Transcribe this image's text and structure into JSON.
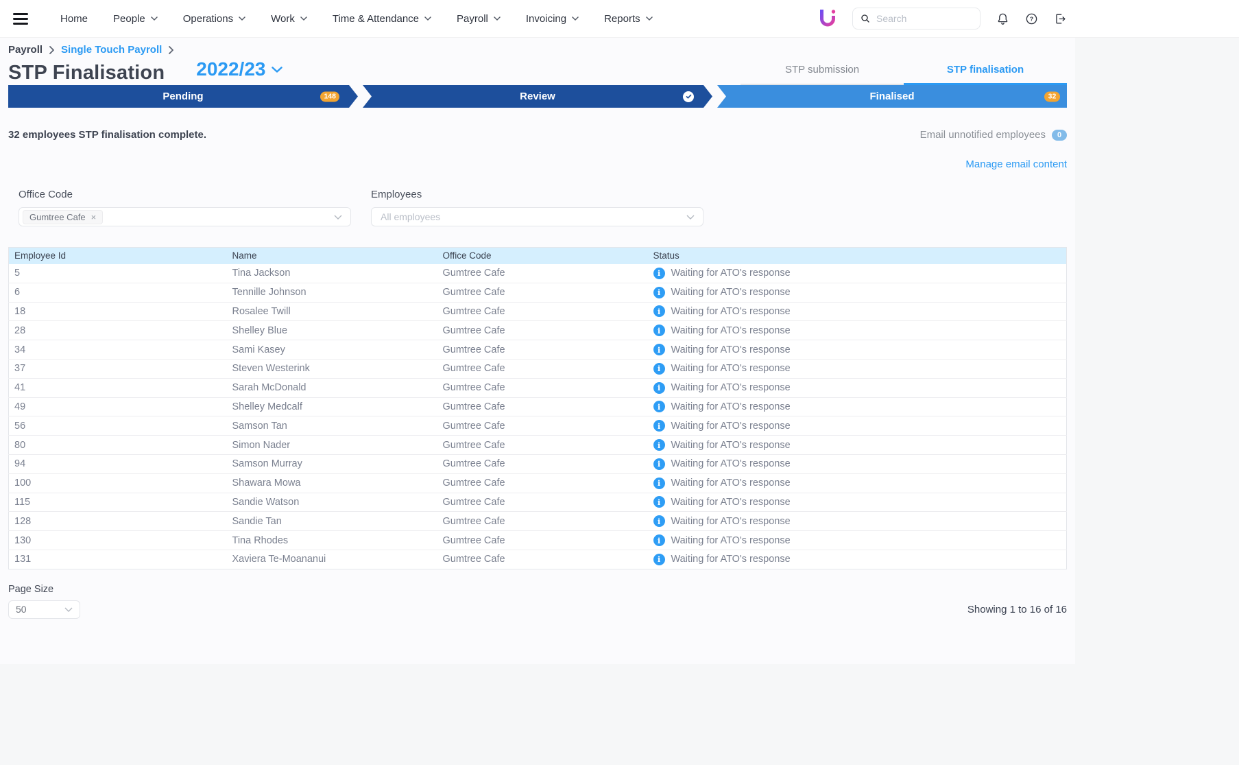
{
  "nav": {
    "items": [
      {
        "label": "Home",
        "dropdown": false
      },
      {
        "label": "People",
        "dropdown": true
      },
      {
        "label": "Operations",
        "dropdown": true
      },
      {
        "label": "Work",
        "dropdown": true
      },
      {
        "label": "Time & Attendance",
        "dropdown": true
      },
      {
        "label": "Payroll",
        "dropdown": true
      },
      {
        "label": "Invoicing",
        "dropdown": true
      },
      {
        "label": "Reports",
        "dropdown": true
      }
    ],
    "search_placeholder": "Search"
  },
  "breadcrumb": {
    "level1": "Payroll",
    "level2": "Single Touch Payroll"
  },
  "page": {
    "title": "STP Finalisation",
    "year": "2022/23"
  },
  "tabs": [
    {
      "label": "STP submission",
      "active": false
    },
    {
      "label": "STP finalisation",
      "active": true
    }
  ],
  "progress": {
    "steps": [
      {
        "label": "Pending",
        "badge": "148",
        "color": "#1d4f9c"
      },
      {
        "label": "Review",
        "check": true,
        "color": "#1d4f9c"
      },
      {
        "label": "Finalised",
        "badge": "32",
        "color": "#3a8ede"
      }
    ]
  },
  "summary": {
    "text": "32 employees STP finalisation complete."
  },
  "actions": {
    "email_unnotified_label": "Email unnotified employees",
    "email_unnotified_count": "0",
    "manage_email_link": "Manage email content"
  },
  "filters": {
    "office_code": {
      "label": "Office Code",
      "selected_tag": "Gumtree Cafe"
    },
    "employees": {
      "label": "Employees",
      "placeholder": "All employees"
    }
  },
  "table": {
    "columns": [
      "Employee Id",
      "Name",
      "Office Code",
      "Status"
    ],
    "rows": [
      {
        "id": "5",
        "name": "Tina Jackson",
        "office": "Gumtree Cafe",
        "status": "Waiting for ATO's response"
      },
      {
        "id": "6",
        "name": "Tennille Johnson",
        "office": "Gumtree Cafe",
        "status": "Waiting for ATO's response"
      },
      {
        "id": "18",
        "name": "Rosalee Twill",
        "office": "Gumtree Cafe",
        "status": "Waiting for ATO's response"
      },
      {
        "id": "28",
        "name": "Shelley Blue",
        "office": "Gumtree Cafe",
        "status": "Waiting for ATO's response"
      },
      {
        "id": "34",
        "name": "Sami Kasey",
        "office": "Gumtree Cafe",
        "status": "Waiting for ATO's response"
      },
      {
        "id": "37",
        "name": "Steven Westerink",
        "office": "Gumtree Cafe",
        "status": "Waiting for ATO's response"
      },
      {
        "id": "41",
        "name": "Sarah McDonald",
        "office": "Gumtree Cafe",
        "status": "Waiting for ATO's response"
      },
      {
        "id": "49",
        "name": "Shelley Medcalf",
        "office": "Gumtree Cafe",
        "status": "Waiting for ATO's response"
      },
      {
        "id": "56",
        "name": "Samson Tan",
        "office": "Gumtree Cafe",
        "status": "Waiting for ATO's response"
      },
      {
        "id": "80",
        "name": "Simon Nader",
        "office": "Gumtree Cafe",
        "status": "Waiting for ATO's response"
      },
      {
        "id": "94",
        "name": "Samson Murray",
        "office": "Gumtree Cafe",
        "status": "Waiting for ATO's response"
      },
      {
        "id": "100",
        "name": "Shawara Mowa",
        "office": "Gumtree Cafe",
        "status": "Waiting for ATO's response"
      },
      {
        "id": "115",
        "name": "Sandie Watson",
        "office": "Gumtree Cafe",
        "status": "Waiting for ATO's response"
      },
      {
        "id": "128",
        "name": "Sandie Tan",
        "office": "Gumtree Cafe",
        "status": "Waiting for ATO's response"
      },
      {
        "id": "130",
        "name": "Tina Rhodes",
        "office": "Gumtree Cafe",
        "status": "Waiting for ATO's response"
      },
      {
        "id": "131",
        "name": "Xaviera Te-Moananui",
        "office": "Gumtree Cafe",
        "status": "Waiting for ATO's response"
      }
    ]
  },
  "pagination": {
    "page_size_label": "Page Size",
    "page_size": "50",
    "showing": "Showing 1 to 16 of 16"
  },
  "colors": {
    "accent_blue": "#2b9af3",
    "step_dark_blue": "#1d4f9c",
    "step_light_blue": "#3a8ede",
    "badge_orange": "#f2a431",
    "info_blue": "#2e9df5",
    "table_header_bg": "#d5effe",
    "count_pill_blue": "#82bbe9"
  }
}
